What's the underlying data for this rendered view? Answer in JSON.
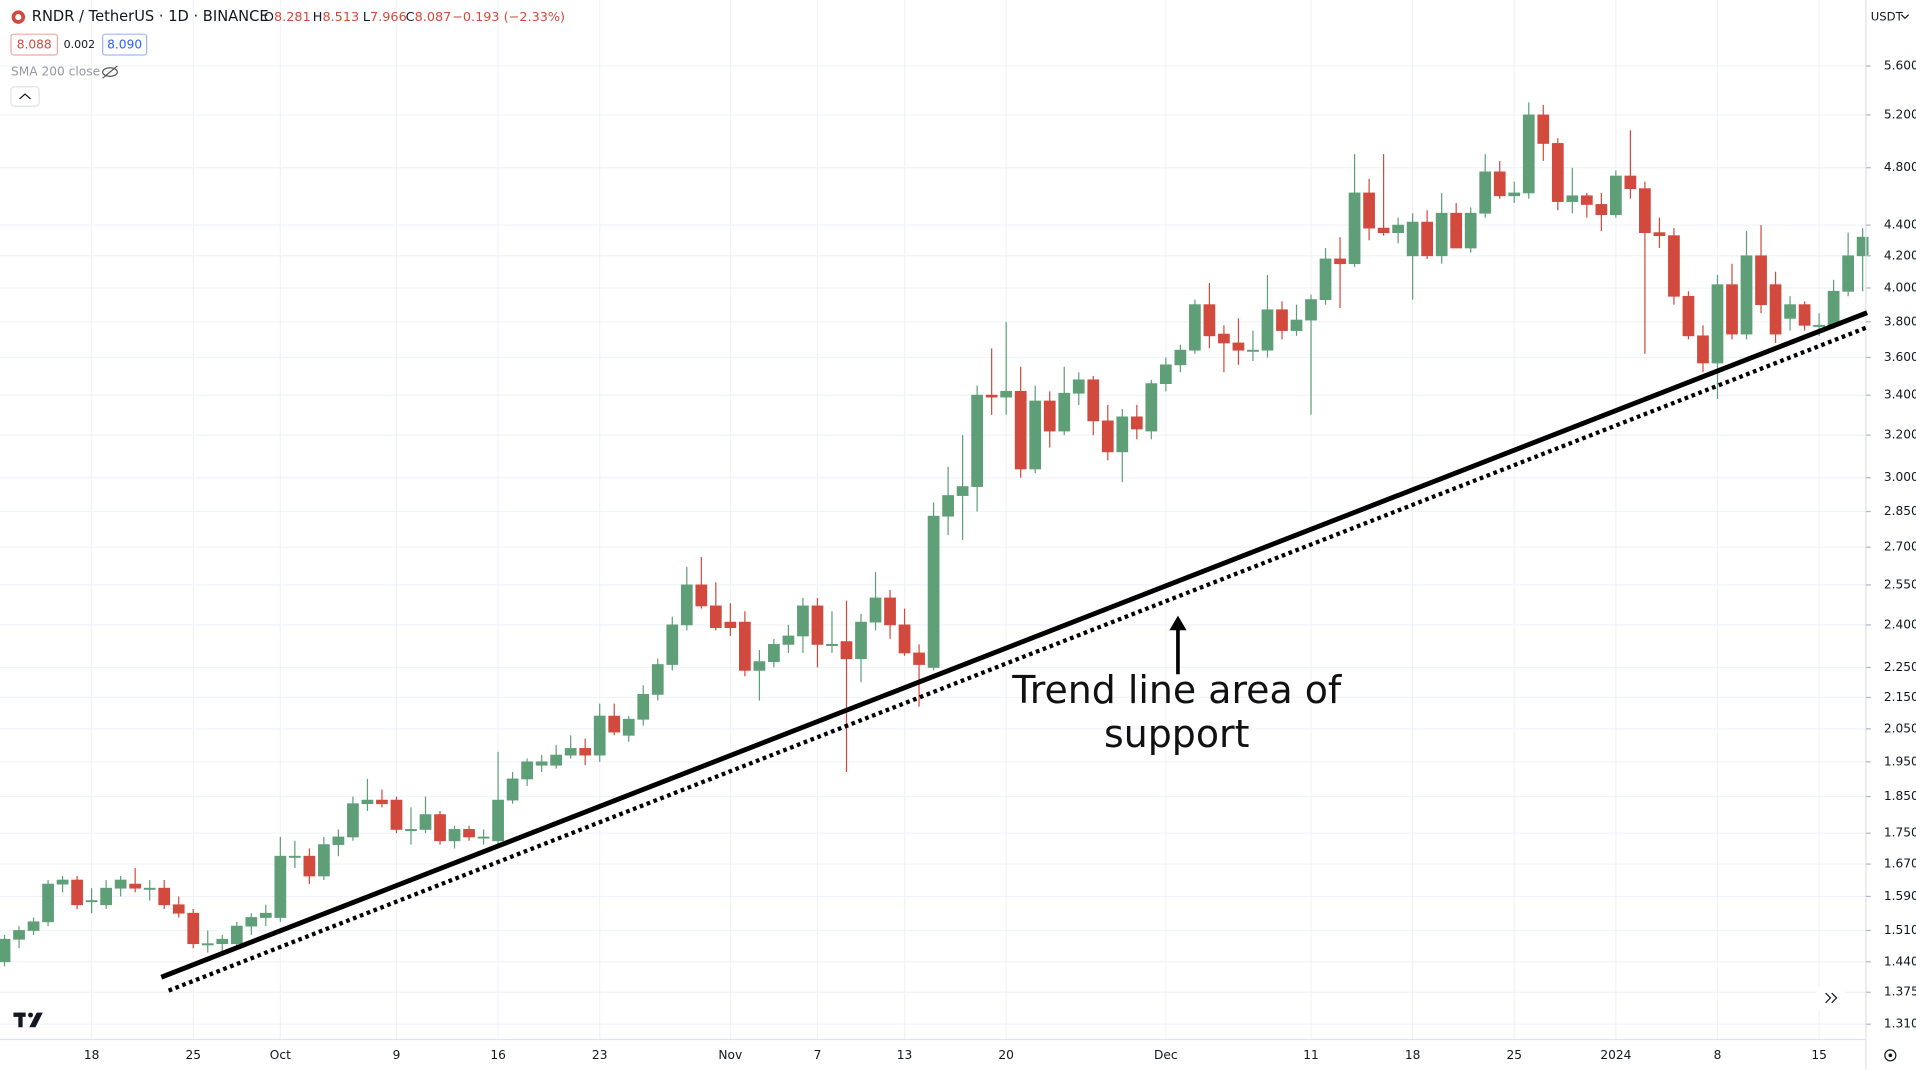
{
  "header": {
    "symbol": "RNDR / TetherUS · 1D · BINANCE",
    "ohlc": [
      {
        "label": "O",
        "value": "8.281"
      },
      {
        "label": "H",
        "value": "8.513"
      },
      {
        "label": "L",
        "value": "7.966"
      },
      {
        "label": "C",
        "value": "8.087"
      }
    ],
    "change": "−0.193 (−2.33%)",
    "bid": "8.088",
    "spread": "0.002",
    "ask": "8.090",
    "indicator": "SMA 200 close",
    "currency": "USDT"
  },
  "chart_data": {
    "type": "candlestick",
    "annotation": [
      "Trend line area of",
      "support"
    ],
    "categories": [
      null,
      null,
      null,
      null,
      null,
      null,
      "18",
      null,
      null,
      null,
      null,
      null,
      null,
      "25",
      null,
      null,
      null,
      null,
      null,
      "Oct",
      null,
      null,
      null,
      null,
      null,
      null,
      null,
      "9",
      null,
      null,
      null,
      null,
      null,
      null,
      "16",
      null,
      null,
      null,
      null,
      null,
      null,
      "23",
      null,
      null,
      null,
      null,
      null,
      null,
      null,
      null,
      "Nov",
      null,
      null,
      null,
      null,
      null,
      "7",
      null,
      null,
      null,
      null,
      null,
      "13",
      null,
      null,
      null,
      null,
      null,
      null,
      "20",
      null,
      null,
      null,
      null,
      null,
      null,
      null,
      null,
      null,
      null,
      "Dec",
      null,
      null,
      null,
      null,
      null,
      null,
      null,
      null,
      null,
      "11",
      null,
      null,
      null,
      null,
      null,
      null,
      "18",
      null,
      null,
      null,
      null,
      null,
      null,
      "25",
      null,
      null,
      null,
      null,
      null,
      null,
      "2024",
      null,
      null,
      null,
      null,
      null,
      null,
      "8",
      null,
      null,
      null,
      null,
      null,
      null,
      "15",
      null,
      null,
      null
    ],
    "ohlc": [
      [
        1.44,
        1.5,
        1.43,
        1.49
      ],
      [
        1.49,
        1.52,
        1.47,
        1.51
      ],
      [
        1.51,
        1.54,
        1.5,
        1.53
      ],
      [
        1.53,
        1.63,
        1.52,
        1.62
      ],
      [
        1.62,
        1.64,
        1.6,
        1.63
      ],
      [
        1.63,
        1.64,
        1.56,
        1.57
      ],
      [
        1.58,
        1.61,
        1.55,
        1.58
      ],
      [
        1.57,
        1.63,
        1.56,
        1.61
      ],
      [
        1.61,
        1.64,
        1.59,
        1.63
      ],
      [
        1.62,
        1.66,
        1.6,
        1.61
      ],
      [
        1.61,
        1.63,
        1.58,
        1.61
      ],
      [
        1.61,
        1.63,
        1.56,
        1.57
      ],
      [
        1.57,
        1.59,
        1.54,
        1.55
      ],
      [
        1.55,
        1.56,
        1.47,
        1.48
      ],
      [
        1.48,
        1.51,
        1.46,
        1.48
      ],
      [
        1.48,
        1.5,
        1.46,
        1.49
      ],
      [
        1.48,
        1.53,
        1.47,
        1.52
      ],
      [
        1.52,
        1.55,
        1.5,
        1.54
      ],
      [
        1.54,
        1.57,
        1.52,
        1.55
      ],
      [
        1.54,
        1.74,
        1.53,
        1.69
      ],
      [
        1.69,
        1.73,
        1.66,
        1.69
      ],
      [
        1.69,
        1.71,
        1.62,
        1.64
      ],
      [
        1.64,
        1.74,
        1.63,
        1.72
      ],
      [
        1.72,
        1.76,
        1.69,
        1.74
      ],
      [
        1.74,
        1.85,
        1.73,
        1.83
      ],
      [
        1.83,
        1.9,
        1.81,
        1.84
      ],
      [
        1.84,
        1.87,
        1.82,
        1.83
      ],
      [
        1.84,
        1.85,
        1.75,
        1.76
      ],
      [
        1.76,
        1.82,
        1.72,
        1.76
      ],
      [
        1.76,
        1.85,
        1.75,
        1.8
      ],
      [
        1.8,
        1.81,
        1.72,
        1.73
      ],
      [
        1.73,
        1.77,
        1.71,
        1.76
      ],
      [
        1.76,
        1.77,
        1.73,
        1.74
      ],
      [
        1.74,
        1.76,
        1.72,
        1.74
      ],
      [
        1.73,
        1.98,
        1.72,
        1.84
      ],
      [
        1.84,
        1.92,
        1.83,
        1.9
      ],
      [
        1.9,
        1.96,
        1.88,
        1.95
      ],
      [
        1.94,
        1.97,
        1.92,
        1.95
      ],
      [
        1.94,
        2.0,
        1.93,
        1.97
      ],
      [
        1.97,
        2.03,
        1.96,
        1.99
      ],
      [
        1.99,
        2.02,
        1.94,
        1.97
      ],
      [
        1.97,
        2.13,
        1.95,
        2.09
      ],
      [
        2.09,
        2.13,
        2.03,
        2.04
      ],
      [
        2.03,
        2.09,
        2.01,
        2.08
      ],
      [
        2.08,
        2.19,
        2.06,
        2.16
      ],
      [
        2.16,
        2.28,
        2.14,
        2.26
      ],
      [
        2.26,
        2.43,
        2.24,
        2.4
      ],
      [
        2.4,
        2.62,
        2.38,
        2.55
      ],
      [
        2.55,
        2.66,
        2.46,
        2.47
      ],
      [
        2.47,
        2.56,
        2.38,
        2.39
      ],
      [
        2.41,
        2.48,
        2.36,
        2.39
      ],
      [
        2.41,
        2.45,
        2.22,
        2.24
      ],
      [
        2.24,
        2.31,
        2.14,
        2.27
      ],
      [
        2.27,
        2.35,
        2.25,
        2.33
      ],
      [
        2.33,
        2.4,
        2.3,
        2.36
      ],
      [
        2.36,
        2.5,
        2.3,
        2.47
      ],
      [
        2.47,
        2.5,
        2.25,
        2.33
      ],
      [
        2.33,
        2.45,
        2.3,
        2.33
      ],
      [
        2.34,
        2.49,
        1.92,
        2.28
      ],
      [
        2.28,
        2.44,
        2.2,
        2.41
      ],
      [
        2.41,
        2.6,
        2.38,
        2.5
      ],
      [
        2.5,
        2.53,
        2.35,
        2.4
      ],
      [
        2.4,
        2.46,
        2.29,
        2.3
      ],
      [
        2.3,
        2.33,
        2.12,
        2.26
      ],
      [
        2.25,
        2.89,
        2.24,
        2.83
      ],
      [
        2.83,
        3.05,
        2.75,
        2.92
      ],
      [
        2.92,
        3.2,
        2.73,
        2.96
      ],
      [
        2.96,
        3.45,
        2.85,
        3.4
      ],
      [
        3.4,
        3.65,
        3.3,
        3.39
      ],
      [
        3.39,
        3.8,
        3.3,
        3.42
      ],
      [
        3.42,
        3.55,
        3.0,
        3.04
      ],
      [
        3.04,
        3.45,
        3.02,
        3.37
      ],
      [
        3.37,
        3.42,
        3.14,
        3.22
      ],
      [
        3.22,
        3.55,
        3.2,
        3.41
      ],
      [
        3.41,
        3.52,
        3.35,
        3.48
      ],
      [
        3.48,
        3.5,
        3.2,
        3.27
      ],
      [
        3.27,
        3.35,
        3.08,
        3.12
      ],
      [
        3.12,
        3.33,
        2.98,
        3.29
      ],
      [
        3.29,
        3.35,
        3.18,
        3.23
      ],
      [
        3.22,
        3.48,
        3.18,
        3.46
      ],
      [
        3.46,
        3.6,
        3.42,
        3.56
      ],
      [
        3.56,
        3.67,
        3.52,
        3.64
      ],
      [
        3.64,
        3.93,
        3.62,
        3.9
      ],
      [
        3.9,
        4.03,
        3.65,
        3.72
      ],
      [
        3.73,
        3.78,
        3.52,
        3.68
      ],
      [
        3.68,
        3.82,
        3.56,
        3.64
      ],
      [
        3.64,
        3.75,
        3.58,
        3.64
      ],
      [
        3.64,
        4.08,
        3.6,
        3.87
      ],
      [
        3.87,
        3.92,
        3.7,
        3.75
      ],
      [
        3.75,
        3.9,
        3.72,
        3.81
      ],
      [
        3.81,
        3.96,
        3.3,
        3.93
      ],
      [
        3.93,
        4.25,
        3.9,
        4.18
      ],
      [
        4.18,
        4.32,
        3.88,
        4.15
      ],
      [
        4.15,
        4.9,
        4.13,
        4.62
      ],
      [
        4.62,
        4.72,
        4.3,
        4.38
      ],
      [
        4.38,
        4.9,
        4.33,
        4.35
      ],
      [
        4.35,
        4.45,
        4.28,
        4.4
      ],
      [
        4.2,
        4.48,
        3.93,
        4.42
      ],
      [
        4.42,
        4.5,
        4.18,
        4.2
      ],
      [
        4.2,
        4.62,
        4.15,
        4.48
      ],
      [
        4.48,
        4.55,
        4.25,
        4.25
      ],
      [
        4.25,
        4.52,
        4.22,
        4.48
      ],
      [
        4.48,
        4.9,
        4.45,
        4.77
      ],
      [
        4.77,
        4.85,
        4.58,
        4.6
      ],
      [
        4.6,
        4.7,
        4.55,
        4.62
      ],
      [
        4.62,
        5.3,
        4.58,
        5.2
      ],
      [
        5.2,
        5.28,
        4.85,
        4.98
      ],
      [
        4.98,
        5.02,
        4.5,
        4.56
      ],
      [
        4.56,
        4.8,
        4.48,
        4.6
      ],
      [
        4.6,
        4.62,
        4.45,
        4.54
      ],
      [
        4.54,
        4.62,
        4.36,
        4.47
      ],
      [
        4.47,
        4.78,
        4.45,
        4.74
      ],
      [
        4.74,
        5.08,
        4.58,
        4.65
      ],
      [
        4.65,
        4.7,
        3.62,
        4.35
      ],
      [
        4.35,
        4.45,
        4.25,
        4.33
      ],
      [
        4.33,
        4.38,
        3.9,
        3.95
      ],
      [
        3.95,
        3.98,
        3.7,
        3.72
      ],
      [
        3.72,
        3.78,
        3.52,
        3.57
      ],
      [
        3.57,
        4.08,
        3.38,
        4.02
      ],
      [
        4.02,
        4.15,
        3.7,
        3.73
      ],
      [
        3.73,
        4.36,
        3.7,
        4.2
      ],
      [
        4.2,
        4.4,
        3.85,
        3.9
      ],
      [
        4.02,
        4.1,
        3.68,
        3.73
      ],
      [
        3.82,
        3.95,
        3.75,
        3.9
      ],
      [
        3.9,
        3.92,
        3.75,
        3.78
      ],
      [
        3.78,
        3.85,
        3.72,
        3.78
      ],
      [
        3.78,
        4.05,
        3.76,
        3.98
      ],
      [
        3.98,
        4.35,
        3.95,
        4.2
      ],
      [
        4.2,
        4.38,
        3.98,
        4.32
      ]
    ],
    "up_color": "#5f9f78",
    "down_color": "#d24a3e",
    "ylim": [
      1.28,
      6.19
    ],
    "log_scale": true,
    "grid": true,
    "yticks": [
      {
        "value": 1.31,
        "label": "1.310"
      },
      {
        "value": 1.375,
        "label": "1.375"
      },
      {
        "value": 1.44,
        "label": "1.440"
      },
      {
        "value": 1.51,
        "label": "1.510"
      },
      {
        "value": 1.59,
        "label": "1.590"
      },
      {
        "value": 1.67,
        "label": "1.670"
      },
      {
        "value": 1.75,
        "label": "1.750"
      },
      {
        "value": 1.85,
        "label": "1.850"
      },
      {
        "value": 1.95,
        "label": "1.950"
      },
      {
        "value": 2.05,
        "label": "2.050"
      },
      {
        "value": 2.15,
        "label": "2.150"
      },
      {
        "value": 2.25,
        "label": "2.250"
      },
      {
        "value": 2.4,
        "label": "2.400"
      },
      {
        "value": 2.55,
        "label": "2.550"
      },
      {
        "value": 2.7,
        "label": "2.700"
      },
      {
        "value": 2.85,
        "label": "2.850"
      },
      {
        "value": 3,
        "label": "3.000"
      },
      {
        "value": 3.2,
        "label": "3.200"
      },
      {
        "value": 3.4,
        "label": "3.400"
      },
      {
        "value": 3.6,
        "label": "3.600"
      },
      {
        "value": 3.8,
        "label": "3.800"
      },
      {
        "value": 4,
        "label": "4.000"
      },
      {
        "value": 4.2,
        "label": "4.200"
      },
      {
        "value": 4.4,
        "label": "4.400"
      },
      {
        "value": 4.8,
        "label": "4.800"
      },
      {
        "value": 5.2,
        "label": "5.200"
      },
      {
        "value": 5.6,
        "label": "5.600"
      }
    ]
  }
}
